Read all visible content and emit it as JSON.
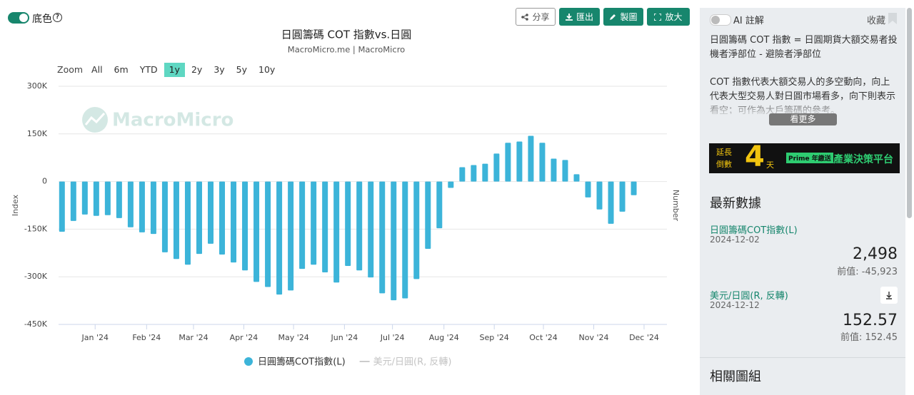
{
  "toolbar": {
    "toggle": "底色",
    "help": "?",
    "buttons": [
      "分享",
      "匯出",
      "製圖",
      "放大"
    ],
    "zoom_label": "Zoom",
    "zoom": [
      "All",
      "6m",
      "YTD",
      "1y",
      "2y",
      "3y",
      "5y",
      "10y"
    ],
    "zoom_active": "1y"
  },
  "chart_data": {
    "type": "bar",
    "title": "日圓籌碼 COT 指數vs.日圓",
    "subtitle": "MacroMicro.me | MacroMicro",
    "watermark": "MacroMicro",
    "y_label": "Index",
    "y2_label": "Number",
    "categories": [
      null,
      null,
      null,
      null,
      null,
      null,
      null,
      null,
      null,
      null,
      null,
      null,
      null,
      null,
      null,
      null,
      null,
      null,
      null,
      null,
      null,
      null,
      null,
      null,
      null,
      null,
      null,
      null,
      null,
      null,
      null,
      null,
      null,
      null,
      null,
      null,
      null,
      null,
      null,
      null,
      null,
      null,
      null,
      null,
      null,
      null,
      null,
      null,
      null,
      null,
      null
    ],
    "series": [
      {
        "name": "日圓籌碼COT指數(L)",
        "color": "#3cb4d9",
        "values": [
          -158000,
          -124000,
          -104000,
          -108000,
          -106000,
          -115000,
          -144000,
          -160000,
          -165000,
          -223000,
          -244000,
          -262000,
          -228000,
          -196000,
          -230000,
          -255000,
          -280000,
          -316000,
          -332000,
          -356000,
          -343000,
          -275000,
          -262000,
          -286000,
          -318000,
          -266000,
          -280000,
          -302000,
          -352000,
          -374000,
          -368000,
          -307000,
          -212000,
          -147000,
          -20000,
          45000,
          52000,
          56000,
          88000,
          122000,
          126000,
          144000,
          122000,
          72000,
          68000,
          23000,
          -50000,
          -88000,
          -133000,
          -95000,
          -43000
        ]
      }
    ],
    "inactive_legend": [
      "美元/日圓(R, 反轉)"
    ],
    "xlim": [
      -0.3,
      52.9
    ],
    "xticks": [
      {
        "value": 2.9,
        "label": "Jan '24"
      },
      {
        "value": 7.4,
        "label": "Feb '24"
      },
      {
        "value": 11.5,
        "label": "Mar '24"
      },
      {
        "value": 15.9,
        "label": "Apr '24"
      },
      {
        "value": 20.25,
        "label": "May '24"
      },
      {
        "value": 24.7,
        "label": "Jun '24"
      },
      {
        "value": 28.9,
        "label": "Jul '24"
      },
      {
        "value": 33.4,
        "label": "Aug '24"
      },
      {
        "value": 37.8,
        "label": "Sep '24"
      },
      {
        "value": 42.1,
        "label": "Oct '24"
      },
      {
        "value": 46.5,
        "label": "Nov '24"
      },
      {
        "value": 50.9,
        "label": "Dec '24"
      }
    ],
    "ylim": [
      -450000,
      300000
    ],
    "yticks": [
      {
        "value": 300000,
        "label": "300K"
      },
      {
        "value": 150000,
        "label": "150K"
      },
      0,
      {
        "value": -150000,
        "label": "-150K"
      },
      {
        "value": -300000,
        "label": "-300K"
      },
      {
        "value": -450000,
        "label": "-450K"
      }
    ],
    "grid": true
  },
  "panel": {
    "ai": "AI 註解",
    "favorite": "收藏",
    "desc1": "日圓籌碼 COT 指數 = 日圓期貨大額交易者投機者淨部位 - 避險者淨部位",
    "desc2": "COT 指數代表大額交易人的多空動向，向上代表大型交易人對日圓市場看多，向下則表示看空；可作為大戶籌碼的參考。",
    "more": "看更多",
    "banner": {
      "left": "延長 倒數",
      "num": "4",
      "unit": "天",
      "tag": "Prime 年繳送",
      "right": "產業決策平台"
    },
    "latest": "最新數據",
    "items": [
      {
        "name": "日圓籌碼COT指數(L)",
        "date": "2024-12-02",
        "value": "2,498",
        "prev": "前值: -45,923"
      },
      {
        "name": "美元/日圓(R, 反轉)",
        "date": "2024-12-12",
        "value": "152.57",
        "prev": "前值: 152.45"
      }
    ],
    "related": "相關圖組"
  }
}
